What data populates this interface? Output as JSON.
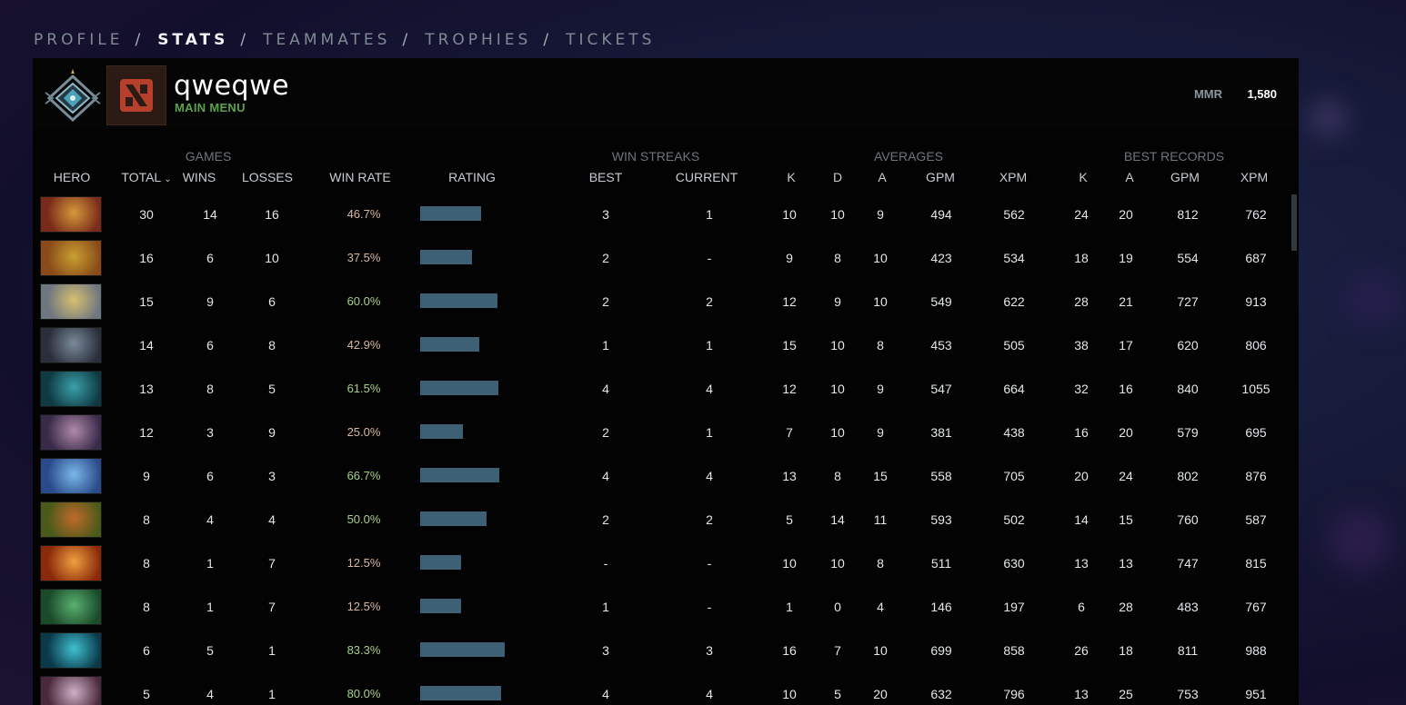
{
  "nav": {
    "tabs": [
      {
        "label": "PROFILE",
        "active": false
      },
      {
        "label": "STATS",
        "active": true
      },
      {
        "label": "TEAMMATES",
        "active": false
      },
      {
        "label": "TROPHIES",
        "active": false
      },
      {
        "label": "TICKETS",
        "active": false
      }
    ],
    "separator": "/"
  },
  "profile": {
    "username": "qweqwe",
    "status": "MAIN MENU",
    "mmr_label": "MMR",
    "mmr_value": "1,580"
  },
  "table": {
    "groups": {
      "games": "GAMES",
      "win_streaks": "WIN STREAKS",
      "averages": "AVERAGES",
      "best_records": "BEST RECORDS"
    },
    "columns": {
      "hero": "HERO",
      "total": "TOTAL",
      "wins": "WINS",
      "losses": "LOSSES",
      "win_rate": "WIN RATE",
      "rating": "RATING",
      "best": "BEST",
      "current": "CURRENT",
      "avg_k": "K",
      "avg_d": "D",
      "avg_a": "A",
      "avg_gpm": "GPM",
      "avg_xpm": "XPM",
      "best_k": "K",
      "best_a": "A",
      "best_gpm": "GPM",
      "best_xpm": "XPM"
    },
    "sort_icon": "chevron-down-icon",
    "rows": [
      {
        "total": "30",
        "wins": "14",
        "losses": "16",
        "win_rate": "46.7%",
        "rating": 0.63,
        "best": "3",
        "current": "1",
        "avg_k": "10",
        "avg_d": "10",
        "avg_a": "9",
        "avg_gpm": "494",
        "avg_xpm": "562",
        "best_k": "24",
        "best_a": "20",
        "best_gpm": "812",
        "best_xpm": "762"
      },
      {
        "total": "16",
        "wins": "6",
        "losses": "10",
        "win_rate": "37.5%",
        "rating": 0.54,
        "best": "2",
        "current": "-",
        "avg_k": "9",
        "avg_d": "8",
        "avg_a": "10",
        "avg_gpm": "423",
        "avg_xpm": "534",
        "best_k": "18",
        "best_a": "19",
        "best_gpm": "554",
        "best_xpm": "687"
      },
      {
        "total": "15",
        "wins": "9",
        "losses": "6",
        "win_rate": "60.0%",
        "rating": 0.8,
        "best": "2",
        "current": "2",
        "avg_k": "12",
        "avg_d": "9",
        "avg_a": "10",
        "avg_gpm": "549",
        "avg_xpm": "622",
        "best_k": "28",
        "best_a": "21",
        "best_gpm": "727",
        "best_xpm": "913"
      },
      {
        "total": "14",
        "wins": "6",
        "losses": "8",
        "win_rate": "42.9%",
        "rating": 0.61,
        "best": "1",
        "current": "1",
        "avg_k": "15",
        "avg_d": "10",
        "avg_a": "8",
        "avg_gpm": "453",
        "avg_xpm": "505",
        "best_k": "38",
        "best_a": "17",
        "best_gpm": "620",
        "best_xpm": "806"
      },
      {
        "total": "13",
        "wins": "8",
        "losses": "5",
        "win_rate": "61.5%",
        "rating": 0.81,
        "best": "4",
        "current": "4",
        "avg_k": "12",
        "avg_d": "10",
        "avg_a": "9",
        "avg_gpm": "547",
        "avg_xpm": "664",
        "best_k": "32",
        "best_a": "16",
        "best_gpm": "840",
        "best_xpm": "1055"
      },
      {
        "total": "12",
        "wins": "3",
        "losses": "9",
        "win_rate": "25.0%",
        "rating": 0.44,
        "best": "2",
        "current": "1",
        "avg_k": "7",
        "avg_d": "10",
        "avg_a": "9",
        "avg_gpm": "381",
        "avg_xpm": "438",
        "best_k": "16",
        "best_a": "20",
        "best_gpm": "579",
        "best_xpm": "695"
      },
      {
        "total": "9",
        "wins": "6",
        "losses": "3",
        "win_rate": "66.7%",
        "rating": 0.82,
        "best": "4",
        "current": "4",
        "avg_k": "13",
        "avg_d": "8",
        "avg_a": "15",
        "avg_gpm": "558",
        "avg_xpm": "705",
        "best_k": "20",
        "best_a": "24",
        "best_gpm": "802",
        "best_xpm": "876"
      },
      {
        "total": "8",
        "wins": "4",
        "losses": "4",
        "win_rate": "50.0%",
        "rating": 0.69,
        "best": "2",
        "current": "2",
        "avg_k": "5",
        "avg_d": "14",
        "avg_a": "11",
        "avg_gpm": "593",
        "avg_xpm": "502",
        "best_k": "14",
        "best_a": "15",
        "best_gpm": "760",
        "best_xpm": "587"
      },
      {
        "total": "8",
        "wins": "1",
        "losses": "7",
        "win_rate": "12.5%",
        "rating": 0.42,
        "best": "-",
        "current": "-",
        "avg_k": "10",
        "avg_d": "10",
        "avg_a": "8",
        "avg_gpm": "511",
        "avg_xpm": "630",
        "best_k": "13",
        "best_a": "13",
        "best_gpm": "747",
        "best_xpm": "815"
      },
      {
        "total": "8",
        "wins": "1",
        "losses": "7",
        "win_rate": "12.5%",
        "rating": 0.42,
        "best": "1",
        "current": "-",
        "avg_k": "1",
        "avg_d": "0",
        "avg_a": "4",
        "avg_gpm": "146",
        "avg_xpm": "197",
        "best_k": "6",
        "best_a": "28",
        "best_gpm": "483",
        "best_xpm": "767"
      },
      {
        "total": "6",
        "wins": "5",
        "losses": "1",
        "win_rate": "83.3%",
        "rating": 0.88,
        "best": "3",
        "current": "3",
        "avg_k": "16",
        "avg_d": "7",
        "avg_a": "10",
        "avg_gpm": "699",
        "avg_xpm": "858",
        "best_k": "26",
        "best_a": "18",
        "best_gpm": "811",
        "best_xpm": "988"
      },
      {
        "total": "5",
        "wins": "4",
        "losses": "1",
        "win_rate": "80.0%",
        "rating": 0.84,
        "best": "4",
        "current": "4",
        "avg_k": "10",
        "avg_d": "5",
        "avg_a": "20",
        "avg_gpm": "632",
        "avg_xpm": "796",
        "best_k": "13",
        "best_a": "25",
        "best_gpm": "753",
        "best_xpm": "951"
      }
    ]
  },
  "colors": {
    "win_rate_good": "#a8d08a",
    "win_rate_bad": "#d9b7a2",
    "rating_bar": "#3e6074",
    "status_green": "#5ca34e"
  }
}
